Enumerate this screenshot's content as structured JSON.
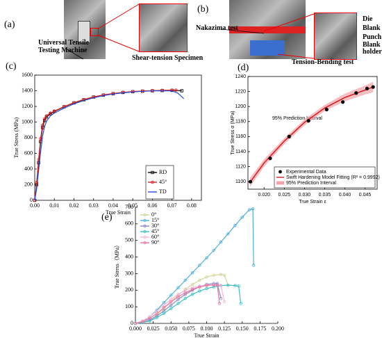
{
  "figure": {
    "a": {
      "label": "(a)",
      "machine": "Universal Tensile Testing Machine",
      "specimen": "Shear-tension Specimen"
    },
    "b": {
      "label": "(b)",
      "nakazima": "Nakazima test",
      "die": "Die",
      "blank": "Blank",
      "punch": "Punch",
      "holder": "Blank holder",
      "bending": "Tension-Bending test"
    }
  },
  "chart_data": [
    {
      "type": "line",
      "panel_label": "(c)",
      "xlabel": "True Strain",
      "ylabel": "True Stress (MPa)",
      "xlim": [
        0,
        0.085
      ],
      "ylim": [
        0,
        1600
      ],
      "xticks": [
        {
          "value": 0,
          "label": "0.00"
        },
        0.01,
        0.02,
        0.03,
        0.04,
        0.05,
        0.06,
        0.07,
        0.08
      ],
      "yticks": [
        0,
        200,
        400,
        600,
        800,
        1000,
        1200,
        1400,
        1600
      ],
      "legend": "lower right",
      "series": [
        {
          "name": "RD",
          "color": "#000000",
          "marker": "square",
          "x": [
            0,
            0.001,
            0.002,
            0.003,
            0.004,
            0.005,
            0.006,
            0.008,
            0.01,
            0.015,
            0.02,
            0.025,
            0.03,
            0.035,
            0.04,
            0.045,
            0.05,
            0.055,
            0.06,
            0.065,
            0.07,
            0.075
          ],
          "values": [
            0,
            200,
            480,
            750,
            930,
            1020,
            1065,
            1105,
            1135,
            1195,
            1245,
            1285,
            1320,
            1345,
            1363,
            1378,
            1388,
            1395,
            1400,
            1403,
            1405,
            1400
          ]
        },
        {
          "name": "45°",
          "color": "#e31a1c",
          "marker": "circle",
          "x": [
            0,
            0.001,
            0.002,
            0.003,
            0.004,
            0.005,
            0.006,
            0.008,
            0.01,
            0.015,
            0.02,
            0.025,
            0.03,
            0.035,
            0.04,
            0.045,
            0.05,
            0.055,
            0.06,
            0.065,
            0.07,
            0.072
          ],
          "values": [
            0,
            230,
            520,
            790,
            960,
            1040,
            1080,
            1115,
            1140,
            1198,
            1248,
            1288,
            1322,
            1347,
            1365,
            1380,
            1390,
            1397,
            1402,
            1406,
            1408,
            1408
          ]
        },
        {
          "name": "TD",
          "color": "#1f4fe0",
          "marker": "none",
          "x": [
            0,
            0.001,
            0.002,
            0.003,
            0.004,
            0.005,
            0.006,
            0.008,
            0.01,
            0.015,
            0.02,
            0.025,
            0.03,
            0.035,
            0.04,
            0.045,
            0.05,
            0.055,
            0.06,
            0.065,
            0.07,
            0.073,
            0.076
          ],
          "values": [
            0,
            150,
            380,
            620,
            820,
            940,
            1010,
            1080,
            1115,
            1180,
            1232,
            1275,
            1310,
            1338,
            1358,
            1373,
            1385,
            1393,
            1398,
            1400,
            1398,
            1370,
            1300
          ]
        }
      ]
    },
    {
      "type": "scatter",
      "panel_label": "(d)",
      "xlabel": "True Strain ε",
      "ylabel": "True Stress σ (MPa)",
      "annotation": "95% Prediction Interval",
      "xlim": [
        0.016,
        0.048
      ],
      "ylim": [
        1090,
        1240
      ],
      "xticks": [
        {
          "value": 0.02,
          "label": "0.020"
        },
        0.025,
        {
          "value": 0.03,
          "label": "0.030"
        },
        0.035,
        {
          "value": 0.04,
          "label": "0.040"
        },
        0.045
      ],
      "yticks": [
        1100,
        1120,
        1140,
        1160,
        1180,
        1200,
        1220,
        1240
      ],
      "legend": "lower right",
      "points": {
        "name": "Experimental Data",
        "color": "#000000",
        "x": [
          0.0166,
          0.0215,
          0.0262,
          0.031,
          0.0355,
          0.0395,
          0.0428,
          0.0455,
          0.047
        ],
        "values": [
          1100,
          1131,
          1160,
          1181,
          1196,
          1206,
          1218,
          1224,
          1226
        ]
      },
      "fit": {
        "name": "Swift Hardening Model Fitting (R² = 0.9992)",
        "color": "#d7191c",
        "x": [
          0.0165,
          0.02,
          0.025,
          0.03,
          0.035,
          0.04,
          0.045,
          0.047
        ],
        "values": [
          1099,
          1125,
          1154,
          1179,
          1198,
          1212,
          1222,
          1226
        ]
      },
      "interval": {
        "name": "95% Prediction Interval",
        "color": "#f4a3a8",
        "x": [
          0.0165,
          0.02,
          0.025,
          0.03,
          0.035,
          0.04,
          0.045,
          0.047
        ],
        "lower": [
          1093,
          1120,
          1150,
          1175,
          1194,
          1207,
          1216,
          1219
        ],
        "upper": [
          1105,
          1130,
          1158,
          1183,
          1202,
          1217,
          1228,
          1233
        ]
      }
    },
    {
      "type": "line",
      "panel_label": "(e)",
      "xlabel": "True Strain",
      "ylabel": "True Stress（MPa）",
      "xlim": [
        0,
        0.2
      ],
      "ylim": [
        0,
        700
      ],
      "xticks": [
        {
          "value": 0,
          "label": "0.000"
        },
        0.025,
        {
          "value": 0.05,
          "label": "0.050"
        },
        0.075,
        {
          "value": 0.1,
          "label": "0.100"
        },
        0.125,
        {
          "value": 0.15,
          "label": "0.150"
        },
        0.175,
        {
          "value": 0.2,
          "label": "0.200"
        }
      ],
      "yticks": [
        0,
        100,
        200,
        300,
        400,
        500,
        600,
        700
      ],
      "legend": "upper left",
      "series": [
        {
          "name": "0°",
          "color": "#d4d49a",
          "marker": "circle",
          "x": [
            0,
            0.01,
            0.02,
            0.03,
            0.04,
            0.05,
            0.06,
            0.07,
            0.08,
            0.09,
            0.1,
            0.11,
            0.12,
            0.125,
            0.13
          ],
          "values": [
            0,
            5,
            20,
            50,
            90,
            130,
            170,
            205,
            235,
            260,
            280,
            290,
            295,
            290,
            230
          ]
        },
        {
          "name": "15°",
          "color": "#4fb0d8",
          "marker": "circle",
          "x": [
            0,
            0.01,
            0.02,
            0.03,
            0.04,
            0.05,
            0.06,
            0.07,
            0.08,
            0.09,
            0.1,
            0.11,
            0.12,
            0.13,
            0.14,
            0.15,
            0.16,
            0.165,
            0.166
          ],
          "values": [
            0,
            10,
            40,
            80,
            125,
            170,
            215,
            260,
            305,
            350,
            395,
            440,
            490,
            540,
            590,
            640,
            685,
            690,
            350
          ]
        },
        {
          "name": "30°",
          "color": "#8888cc",
          "marker": "circle",
          "x": [
            0,
            0.01,
            0.02,
            0.03,
            0.04,
            0.05,
            0.06,
            0.07,
            0.08,
            0.09,
            0.1,
            0.11,
            0.115,
            0.12
          ],
          "values": [
            0,
            5,
            20,
            45,
            75,
            110,
            145,
            175,
            200,
            220,
            235,
            240,
            240,
            150
          ]
        },
        {
          "name": "45°",
          "color": "#3cc0c8",
          "marker": "circle",
          "x": [
            0,
            0.01,
            0.02,
            0.03,
            0.04,
            0.05,
            0.06,
            0.07,
            0.08,
            0.09,
            0.1,
            0.11,
            0.12,
            0.13,
            0.14,
            0.145,
            0.148
          ],
          "values": [
            0,
            5,
            15,
            35,
            60,
            90,
            120,
            150,
            175,
            195,
            210,
            220,
            228,
            230,
            228,
            225,
            120
          ]
        },
        {
          "name": "60°",
          "color": "#f2b8dc",
          "marker": "circle",
          "x": [
            0,
            0.01,
            0.02,
            0.03,
            0.04,
            0.05,
            0.06,
            0.07,
            0.08,
            0.09,
            0.1,
            0.11,
            0.12,
            0.125
          ],
          "values": [
            0,
            15,
            40,
            75,
            110,
            145,
            175,
            200,
            215,
            225,
            230,
            232,
            230,
            130
          ]
        },
        {
          "name": "90°",
          "color": "#e8789a",
          "marker": "circle",
          "x": [
            0,
            0.01,
            0.02,
            0.03,
            0.04,
            0.05,
            0.06,
            0.07,
            0.08,
            0.09,
            0.1,
            0.11,
            0.115,
            0.118
          ],
          "values": [
            0,
            10,
            30,
            60,
            95,
            130,
            160,
            185,
            205,
            220,
            228,
            232,
            230,
            120
          ]
        }
      ]
    }
  ]
}
